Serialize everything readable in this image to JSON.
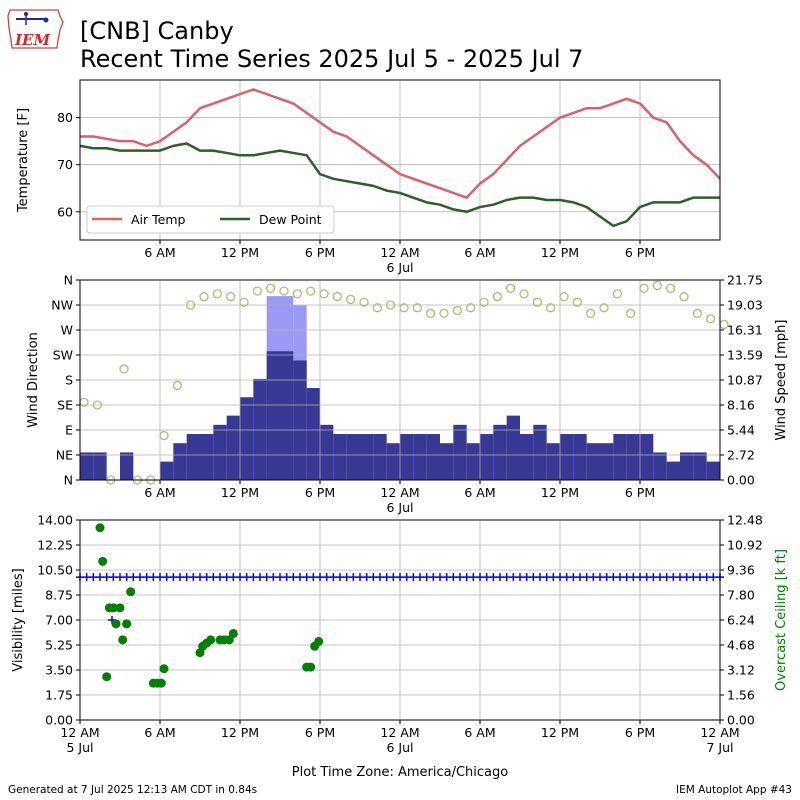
{
  "header": {
    "logo_text": "IEM",
    "title_line1": "[CNB] Canby",
    "title_line2": "Recent Time Series 2025 Jul 5 - 2025 Jul 7"
  },
  "footer": {
    "generated": "Generated at 7 Jul 2025 12:13 AM CDT in 0.84s",
    "app": "IEM Autoplot App #43"
  },
  "colors": {
    "air_temp": "#d9626a",
    "dew_point": "#2e5e2a",
    "wind_speed_bar": "#383895",
    "wind_gust_bar": "#9a9af5",
    "wind_dir_marker": "#b5b87a",
    "visibility": "#0000ff",
    "ceiling": "#008000",
    "grid": "#b0b0b0"
  },
  "chart_data": [
    {
      "type": "line",
      "ylabel": "Temperature [F]",
      "ylim": [
        54,
        88
      ],
      "yticks": [
        "60",
        "70",
        "80"
      ],
      "xlim": [
        0,
        48
      ],
      "xticks": [
        "6 AM",
        "12 PM",
        "6 PM",
        "12 AM\n6 Jul",
        "6 AM",
        "12 PM",
        "6 PM"
      ],
      "grid": true,
      "legend": "lower-left",
      "series": [
        {
          "name": "Air Temp",
          "x": [
            0,
            1,
            2,
            3,
            4,
            5,
            6,
            7,
            8,
            9,
            10,
            11,
            12,
            13,
            14,
            15,
            16,
            17,
            18,
            19,
            20,
            21,
            22,
            23,
            24,
            25,
            26,
            27,
            28,
            29,
            30,
            31,
            32,
            33,
            34,
            35,
            36,
            37,
            38,
            39,
            40,
            41,
            42,
            43,
            44,
            45,
            46,
            47,
            48
          ],
          "y": [
            76,
            76,
            75.5,
            75,
            75,
            74,
            75,
            77,
            79,
            82,
            83,
            84,
            85,
            86,
            85,
            84,
            83,
            81,
            79,
            77,
            76,
            74,
            72,
            70,
            68,
            67,
            66,
            65,
            64,
            63,
            66,
            68,
            71,
            74,
            76,
            78,
            80,
            81,
            82,
            82,
            83,
            84,
            83,
            80,
            79,
            75,
            72,
            70,
            67
          ]
        },
        {
          "name": "Dew Point",
          "x": [
            0,
            1,
            2,
            3,
            4,
            5,
            6,
            7,
            8,
            9,
            10,
            11,
            12,
            13,
            14,
            15,
            16,
            17,
            18,
            19,
            20,
            21,
            22,
            23,
            24,
            25,
            26,
            27,
            28,
            29,
            30,
            31,
            32,
            33,
            34,
            35,
            36,
            37,
            38,
            39,
            40,
            41,
            42,
            43,
            44,
            45,
            46,
            47,
            48
          ],
          "y": [
            74,
            73.5,
            73.5,
            73,
            73,
            73,
            73,
            74,
            74.5,
            73,
            73,
            72.5,
            72,
            72,
            72.5,
            73,
            72.5,
            72,
            68,
            67,
            66.5,
            66,
            65.5,
            64.5,
            64,
            63,
            62,
            61.5,
            60.5,
            60,
            61,
            61.5,
            62.5,
            63,
            63,
            62.5,
            62.5,
            62,
            61,
            59,
            57,
            58,
            61,
            62,
            62,
            62,
            63,
            63,
            63
          ]
        }
      ]
    },
    {
      "type": "bar",
      "ylabel": "Wind Direction",
      "y2label": "Wind Speed [mph]",
      "ylim": [
        0,
        360
      ],
      "yticks": [
        "N",
        "NE",
        "E",
        "SE",
        "S",
        "SW",
        "W",
        "NW",
        "N"
      ],
      "y2lim": [
        0,
        21.75
      ],
      "y2ticks": [
        "0.00",
        "2.72",
        "5.44",
        "8.16",
        "10.87",
        "13.59",
        "16.31",
        "19.03",
        "21.75"
      ],
      "xlim": [
        0,
        48
      ],
      "xticks": [
        "6 AM",
        "12 PM",
        "6 PM",
        "12 AM\n6 Jul",
        "6 AM",
        "12 PM",
        "6 PM"
      ],
      "grid": true,
      "series": [
        {
          "name": "Wind Speed",
          "x": [
            0,
            1,
            2,
            3,
            4,
            5,
            6,
            7,
            8,
            9,
            10,
            11,
            12,
            13,
            14,
            15,
            16,
            17,
            18,
            19,
            20,
            21,
            22,
            23,
            24,
            25,
            26,
            27,
            28,
            29,
            30,
            31,
            32,
            33,
            34,
            35,
            36,
            37,
            38,
            39,
            40,
            41,
            42,
            43,
            44,
            45,
            46,
            47
          ],
          "values": [
            3,
            3,
            0,
            3,
            0,
            0,
            2,
            4,
            5,
            5,
            6,
            7,
            9,
            11,
            14,
            14,
            13,
            10,
            6,
            5,
            5,
            5,
            5,
            4,
            5,
            5,
            5,
            4,
            6,
            4,
            5,
            6,
            7,
            5,
            6,
            4,
            5,
            5,
            4,
            4,
            5,
            5,
            5,
            3,
            2,
            3,
            3,
            2
          ]
        },
        {
          "name": "Wind Gust",
          "x": [
            12,
            13,
            14,
            15,
            16
          ],
          "values": [
            0,
            0,
            20,
            20,
            19
          ]
        },
        {
          "name": "Wind Direction",
          "x": [
            0,
            1,
            2,
            3,
            4,
            5,
            6,
            7,
            8,
            9,
            10,
            11,
            12,
            13,
            14,
            15,
            16,
            17,
            18,
            19,
            20,
            21,
            22,
            23,
            24,
            25,
            26,
            27,
            28,
            29,
            30,
            31,
            32,
            33,
            34,
            35,
            36,
            37,
            38,
            39,
            40,
            41,
            42,
            43,
            44,
            45,
            46,
            47,
            48
          ],
          "y": [
            140,
            135,
            0,
            200,
            0,
            0,
            80,
            170,
            315,
            330,
            335,
            330,
            320,
            340,
            345,
            340,
            335,
            340,
            335,
            330,
            325,
            320,
            310,
            315,
            310,
            310,
            300,
            300,
            305,
            310,
            320,
            330,
            345,
            335,
            320,
            310,
            330,
            320,
            300,
            310,
            335,
            300,
            345,
            350,
            345,
            330,
            300,
            290,
            280
          ]
        }
      ]
    },
    {
      "type": "scatter",
      "ylabel": "Visibility [miles]",
      "y2label": "Overcast Ceiling [k ft]",
      "ylim": [
        0,
        14
      ],
      "yticks": [
        "0.00",
        "1.75",
        "3.50",
        "5.25",
        "7.00",
        "8.75",
        "10.50",
        "12.25",
        "14.00"
      ],
      "y2lim": [
        0,
        12.48
      ],
      "y2ticks": [
        "0.00",
        "1.56",
        "3.12",
        "4.68",
        "6.24",
        "7.80",
        "9.36",
        "10.92",
        "12.48"
      ],
      "xlim": [
        0,
        48
      ],
      "xticks": [
        "12 AM\n5 Jul",
        "6 AM",
        "12 PM",
        "6 PM",
        "12 AM\n6 Jul",
        "6 AM",
        "12 PM",
        "6 PM",
        "12 AM\n7 Jul"
      ],
      "xlabel": "Plot Time Zone: America/Chicago",
      "grid": true,
      "series": [
        {
          "name": "Visibility",
          "x": [
            0,
            0.5,
            1,
            1.5,
            2,
            2.5,
            3,
            3.5,
            4,
            4.5,
            5,
            5.5,
            6,
            6.5,
            7,
            7.5,
            8,
            8.5,
            9,
            9.5,
            10,
            10.5,
            11,
            11.5,
            12,
            12.5,
            13,
            13.5,
            14,
            14.5,
            15,
            15.5,
            16,
            16.5,
            17,
            17.5,
            18,
            18.5,
            19,
            19.5,
            20,
            20.5,
            21,
            21.5,
            22,
            22.5,
            23,
            23.5,
            24,
            24.5,
            25,
            25.5,
            26,
            26.5,
            27,
            27.5,
            28,
            28.5,
            29,
            29.5,
            30,
            30.5,
            31,
            31.5,
            32,
            32.5,
            33,
            33.5,
            34,
            34.5,
            35,
            35.5,
            36,
            36.5,
            37,
            37.5,
            38,
            38.5,
            39,
            39.5,
            40,
            40.5,
            41,
            41.5,
            42,
            42.5,
            43,
            43.5,
            44,
            44.5,
            45,
            45.5,
            46,
            46.5,
            47,
            47.5,
            48
          ],
          "y": [
            10,
            10,
            10,
            10,
            10,
            10,
            10,
            10,
            10,
            10,
            10,
            10,
            10,
            10,
            10,
            10,
            10,
            10,
            10,
            10,
            10,
            10,
            10,
            10,
            10,
            10,
            10,
            10,
            10,
            10,
            10,
            10,
            10,
            10,
            10,
            10,
            10,
            10,
            10,
            10,
            10,
            10,
            10,
            10,
            10,
            10,
            10,
            10,
            10,
            10,
            10,
            10,
            10,
            10,
            10,
            10,
            10,
            10,
            10,
            10,
            10,
            10,
            10,
            10,
            10,
            10,
            10,
            10,
            10,
            10,
            10,
            10,
            10,
            10,
            10,
            10,
            10,
            10,
            10,
            10,
            10,
            10,
            10,
            10,
            10,
            10,
            10,
            10,
            10,
            10,
            10,
            10,
            10,
            10,
            10,
            10,
            10
          ]
        },
        {
          "name": "Visibility drop",
          "x": [
            2.4
          ],
          "y": [
            7
          ]
        },
        {
          "name": "Overcast Ceiling",
          "x": [
            1.5,
            1.7,
            2.0,
            2.2,
            2.5,
            2.7,
            3.0,
            3.2,
            3.5,
            3.8,
            5.5,
            5.8,
            6.1,
            6.3,
            9.0,
            9.2,
            9.5,
            9.8,
            10.5,
            10.8,
            11.2,
            11.5,
            17.0,
            17.3,
            17.6,
            17.9
          ],
          "y": [
            12.0,
            9.9,
            2.7,
            7.0,
            7.0,
            6.0,
            7.0,
            5.0,
            6.0,
            8.0,
            2.3,
            2.3,
            2.3,
            3.2,
            4.2,
            4.6,
            4.8,
            5.0,
            5.0,
            5.0,
            5.0,
            5.4,
            3.3,
            3.3,
            4.6,
            4.9
          ]
        }
      ]
    }
  ]
}
